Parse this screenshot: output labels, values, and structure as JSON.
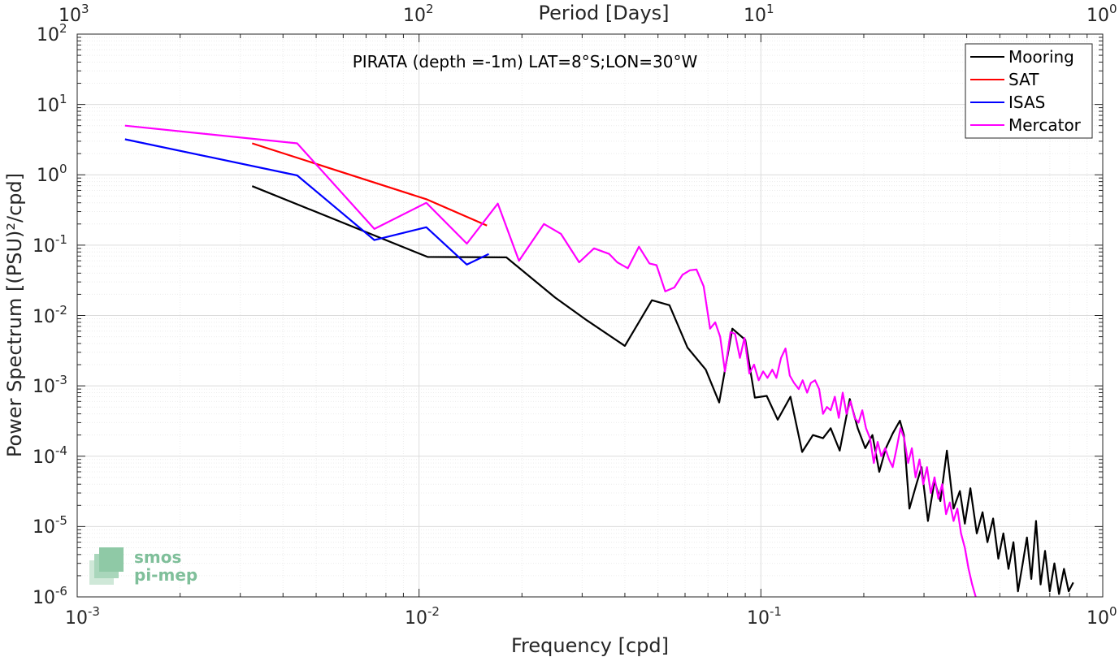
{
  "chart_data": {
    "type": "line",
    "title": "PIRATA (depth =-1m) LAT=8°S;LON=30°W",
    "xlabel": "Frequency [cpd]",
    "ylabel": "Power Spectrum [(PSU)²/cpd]",
    "top_xlabel": "Period [Days]",
    "x_scale": "log",
    "y_scale": "log",
    "xlim": [
      0.001,
      1
    ],
    "ylim": [
      1e-06,
      100
    ],
    "grid": true,
    "legend_position": "top-right",
    "x_ticks": [
      {
        "base": "10",
        "exp": "-3"
      },
      {
        "base": "10",
        "exp": "-2"
      },
      {
        "base": "10",
        "exp": "-1"
      },
      {
        "base": "10",
        "exp": "0"
      }
    ],
    "top_ticks": [
      {
        "base": "10",
        "exp": "3"
      },
      {
        "base": "10",
        "exp": "2"
      },
      {
        "base": "10",
        "exp": "1"
      },
      {
        "base": "10",
        "exp": "0"
      }
    ],
    "y_ticks": [
      {
        "base": "10",
        "exp": "-6"
      },
      {
        "base": "10",
        "exp": "-5"
      },
      {
        "base": "10",
        "exp": "-4"
      },
      {
        "base": "10",
        "exp": "-3"
      },
      {
        "base": "10",
        "exp": "-2"
      },
      {
        "base": "10",
        "exp": "-1"
      },
      {
        "base": "10",
        "exp": "0"
      },
      {
        "base": "10",
        "exp": "1"
      },
      {
        "base": "10",
        "exp": "2"
      }
    ],
    "series": [
      {
        "name": "Mooring",
        "color": "#000000",
        "points": [
          [
            0.00325,
            0.69
          ],
          [
            0.0106,
            0.068
          ],
          [
            0.018,
            0.067
          ],
          [
            0.025,
            0.018
          ],
          [
            0.031,
            0.0085
          ],
          [
            0.04,
            0.0037
          ],
          [
            0.048,
            0.0165
          ],
          [
            0.054,
            0.014
          ],
          [
            0.061,
            0.0035
          ],
          [
            0.069,
            0.0017
          ],
          [
            0.0755,
            0.00058
          ],
          [
            0.0825,
            0.0065
          ],
          [
            0.09,
            0.0045
          ],
          [
            0.096,
            0.00068
          ],
          [
            0.104,
            0.00072
          ],
          [
            0.112,
            0.00033
          ],
          [
            0.122,
            0.0007
          ],
          [
            0.132,
            0.000115
          ],
          [
            0.142,
            0.0002
          ],
          [
            0.152,
            0.00018
          ],
          [
            0.16,
            0.00025
          ],
          [
            0.17,
            0.00012
          ],
          [
            0.182,
            0.00065
          ],
          [
            0.192,
            0.00025
          ],
          [
            0.202,
            0.00013
          ],
          [
            0.212,
            0.0002
          ],
          [
            0.222,
            6e-05
          ],
          [
            0.232,
            0.00013
          ],
          [
            0.243,
            0.00021
          ],
          [
            0.255,
            0.00032
          ],
          [
            0.262,
            0.0002
          ],
          [
            0.272,
            1.8e-05
          ],
          [
            0.285,
            4e-05
          ],
          [
            0.295,
            7e-05
          ],
          [
            0.308,
            1.2e-05
          ],
          [
            0.322,
            4.5e-05
          ],
          [
            0.335,
            2.3e-05
          ],
          [
            0.35,
            0.00012
          ],
          [
            0.366,
            1.8e-05
          ],
          [
            0.382,
            3.2e-05
          ],
          [
            0.395,
            1.1e-05
          ],
          [
            0.41,
            3.5e-05
          ],
          [
            0.428,
            8e-06
          ],
          [
            0.445,
            1.6e-05
          ],
          [
            0.46,
            6e-06
          ],
          [
            0.478,
            1.3e-05
          ],
          [
            0.495,
            3.5e-06
          ],
          [
            0.512,
            8e-06
          ],
          [
            0.53,
            2.5e-06
          ],
          [
            0.548,
            6e-06
          ],
          [
            0.565,
            1.2e-06
          ],
          [
            0.582,
            2.8e-06
          ],
          [
            0.6,
            7e-06
          ],
          [
            0.618,
            1.8e-06
          ],
          [
            0.638,
            1.2e-05
          ],
          [
            0.658,
            1.5e-06
          ],
          [
            0.678,
            4.5e-06
          ],
          [
            0.7,
            1.2e-06
          ],
          [
            0.722,
            3e-06
          ],
          [
            0.745,
            1.1e-06
          ],
          [
            0.77,
            2.5e-06
          ],
          [
            0.795,
            1.2e-06
          ],
          [
            0.82,
            1.6e-06
          ]
        ]
      },
      {
        "name": "SAT",
        "color": "#ff0000",
        "points": [
          [
            0.00325,
            2.8
          ],
          [
            0.0105,
            0.45
          ],
          [
            0.0158,
            0.19
          ]
        ]
      },
      {
        "name": "ISAS",
        "color": "#0000ff",
        "points": [
          [
            0.00138,
            3.2
          ],
          [
            0.0044,
            0.98
          ],
          [
            0.0074,
            0.118
          ],
          [
            0.0105,
            0.18
          ],
          [
            0.0138,
            0.053
          ],
          [
            0.016,
            0.075
          ]
        ]
      },
      {
        "name": "Mercator",
        "color": "#ff00ff",
        "points": [
          [
            0.00138,
            5.0
          ],
          [
            0.0044,
            2.8
          ],
          [
            0.0074,
            0.17
          ],
          [
            0.0105,
            0.4
          ],
          [
            0.0138,
            0.105
          ],
          [
            0.017,
            0.39
          ],
          [
            0.0196,
            0.06
          ],
          [
            0.0232,
            0.2
          ],
          [
            0.026,
            0.145
          ],
          [
            0.0294,
            0.057
          ],
          [
            0.0325,
            0.09
          ],
          [
            0.036,
            0.075
          ],
          [
            0.038,
            0.057
          ],
          [
            0.0408,
            0.047
          ],
          [
            0.044,
            0.095
          ],
          [
            0.0472,
            0.055
          ],
          [
            0.0495,
            0.052
          ],
          [
            0.0525,
            0.022
          ],
          [
            0.0558,
            0.025
          ],
          [
            0.059,
            0.038
          ],
          [
            0.062,
            0.044
          ],
          [
            0.0648,
            0.045
          ],
          [
            0.068,
            0.026
          ],
          [
            0.071,
            0.0065
          ],
          [
            0.0735,
            0.008
          ],
          [
            0.076,
            0.005
          ],
          [
            0.0785,
            0.0016
          ],
          [
            0.0815,
            0.0058
          ],
          [
            0.084,
            0.0055
          ],
          [
            0.0868,
            0.0025
          ],
          [
            0.0895,
            0.0048
          ],
          [
            0.0925,
            0.0015
          ],
          [
            0.0955,
            0.002
          ],
          [
            0.0985,
            0.0012
          ],
          [
            0.1015,
            0.0016
          ],
          [
            0.1045,
            0.0013
          ],
          [
            0.108,
            0.0017
          ],
          [
            0.111,
            0.0013
          ],
          [
            0.1145,
            0.0025
          ],
          [
            0.118,
            0.0034
          ],
          [
            0.1215,
            0.0014
          ],
          [
            0.125,
            0.0011
          ],
          [
            0.129,
            0.0009
          ],
          [
            0.1325,
            0.0012
          ],
          [
            0.1365,
            0.0008
          ],
          [
            0.14,
            0.0011
          ],
          [
            0.144,
            0.0012
          ],
          [
            0.148,
            0.0009
          ],
          [
            0.152,
            0.0004
          ],
          [
            0.156,
            0.0005
          ],
          [
            0.16,
            0.00045
          ],
          [
            0.1645,
            0.0007
          ],
          [
            0.169,
            0.00035
          ],
          [
            0.1735,
            0.0008
          ],
          [
            0.178,
            0.0004
          ],
          [
            0.183,
            0.0006
          ],
          [
            0.188,
            0.00035
          ],
          [
            0.193,
            0.0003
          ],
          [
            0.198,
            0.00045
          ],
          [
            0.203,
            0.00025
          ],
          [
            0.2085,
            0.00018
          ],
          [
            0.214,
            8e-05
          ],
          [
            0.2195,
            0.00016
          ],
          [
            0.225,
            0.0001
          ],
          [
            0.231,
            0.00013
          ],
          [
            0.237,
            9e-05
          ],
          [
            0.243,
            7e-05
          ],
          [
            0.2495,
            0.00013
          ],
          [
            0.256,
            0.00025
          ],
          [
            0.2625,
            0.00018
          ],
          [
            0.2695,
            8e-05
          ],
          [
            0.2765,
            0.00013
          ],
          [
            0.2835,
            5e-05
          ],
          [
            0.291,
            9e-05
          ],
          [
            0.2985,
            4e-05
          ],
          [
            0.306,
            7e-05
          ],
          [
            0.314,
            3e-05
          ],
          [
            0.322,
            5e-05
          ],
          [
            0.3305,
            2.5e-05
          ],
          [
            0.339,
            4e-05
          ],
          [
            0.348,
            1.5e-05
          ],
          [
            0.357,
            2.2e-05
          ],
          [
            0.366,
            1.2e-05
          ],
          [
            0.3755,
            1.8e-05
          ],
          [
            0.385,
            8e-06
          ],
          [
            0.395,
            5e-06
          ],
          [
            0.405,
            2.5e-06
          ],
          [
            0.415,
            1.5e-06
          ],
          [
            0.425,
            1e-06
          ]
        ]
      }
    ]
  },
  "logo": {
    "line1": "smos",
    "line2": "pi-mep"
  }
}
